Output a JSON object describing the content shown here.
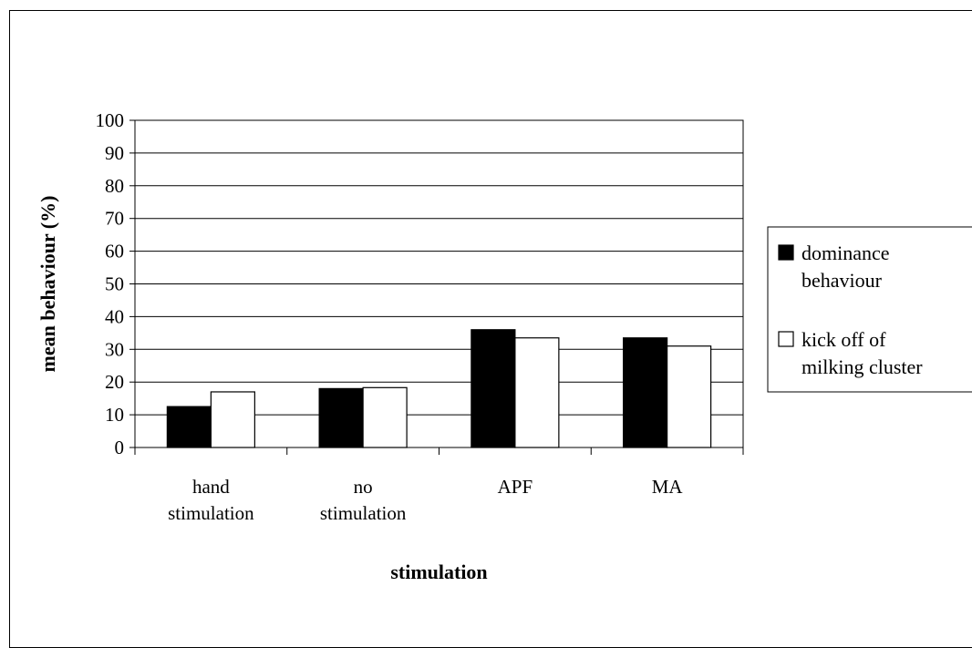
{
  "chart_data": {
    "type": "bar",
    "title": "",
    "xlabel": "stimulation",
    "ylabel": "mean behaviour  (%)",
    "ylim": [
      0,
      100
    ],
    "yticks": [
      0,
      10,
      20,
      30,
      40,
      50,
      60,
      70,
      80,
      90,
      100
    ],
    "grid": true,
    "legend_position": "right",
    "categories": [
      [
        "hand",
        "stimulation"
      ],
      [
        "no",
        "stimulation"
      ],
      [
        "APF"
      ],
      [
        "MA"
      ]
    ],
    "series": [
      {
        "name": [
          "dominance",
          "behaviour"
        ],
        "values": [
          12.5,
          18,
          36,
          33.5
        ],
        "color": "#000000"
      },
      {
        "name": [
          "kick off of",
          "milking cluster"
        ],
        "values": [
          17,
          18.3,
          33.5,
          31
        ],
        "color": "#ffffff"
      }
    ]
  }
}
